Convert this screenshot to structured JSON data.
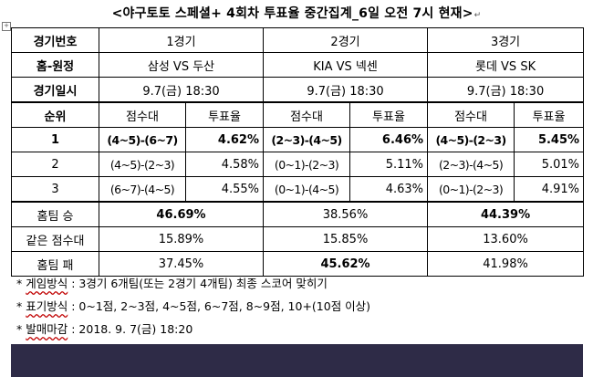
{
  "title": "<야구토토 스페셜+ 4회차 투표율 중간집계_6일 오전 7시 현재>",
  "pm": "↵",
  "header_rows": [
    {
      "label": "경기번호",
      "values": [
        "1경기",
        "2경기",
        "3경기"
      ]
    },
    {
      "label": "홈-원정",
      "values": [
        "삼성 VS 두산",
        "KIA VS 넥센",
        "롯데 VS SK"
      ]
    },
    {
      "label": "경기일시",
      "values": [
        "9.7(금) 18:30",
        "9.7(금) 18:30",
        "9.7(금) 18:30"
      ]
    }
  ],
  "sub_header": {
    "rank": "순위",
    "score": "점수대",
    "vote": "투표율"
  },
  "rank_rows": [
    {
      "rank": "1",
      "bold": true,
      "cells": [
        {
          "score": "(4~5)-(6~7)",
          "vote": "4.62%"
        },
        {
          "score": "(2~3)-(4~5)",
          "vote": "6.46%"
        },
        {
          "score": "(4~5)-(2~3)",
          "vote": "5.45%"
        }
      ]
    },
    {
      "rank": "2",
      "bold": false,
      "cells": [
        {
          "score": "(4~5)-(2~3)",
          "vote": "4.58%"
        },
        {
          "score": "(0~1)-(2~3)",
          "vote": "5.11%"
        },
        {
          "score": "(2~3)-(4~5)",
          "vote": "5.01%"
        }
      ]
    },
    {
      "rank": "3",
      "bold": false,
      "cells": [
        {
          "score": "(6~7)-(4~5)",
          "vote": "4.55%"
        },
        {
          "score": "(0~1)-(4~5)",
          "vote": "4.63%"
        },
        {
          "score": "(0~1)-(2~3)",
          "vote": "4.91%"
        }
      ]
    }
  ],
  "result_rows": [
    {
      "label": "홈팀 승",
      "values": [
        "46.69%",
        "38.56%",
        "44.39%"
      ]
    },
    {
      "label": "같은 점수대",
      "values": [
        "15.89%",
        "15.85%",
        "13.60%"
      ]
    },
    {
      "label": "홈팀 패",
      "values": [
        "37.45%",
        "45.62%",
        "41.98%"
      ]
    }
  ],
  "notes": [
    {
      "bullet": "*",
      "label": "게임방식",
      "text": ": 3경기 6개팀(또는 2경기 4개팀) 최종 스코어 맞히기"
    },
    {
      "bullet": "*",
      "label": "표기방식",
      "text": ": 0~1점, 2~3점, 4~5점, 6~7점, 8~9점, 10+(10점 이상)"
    },
    {
      "bullet": "*",
      "label": "발매마감",
      "text": ": 2018. 9. 7(금) 18:20"
    }
  ]
}
